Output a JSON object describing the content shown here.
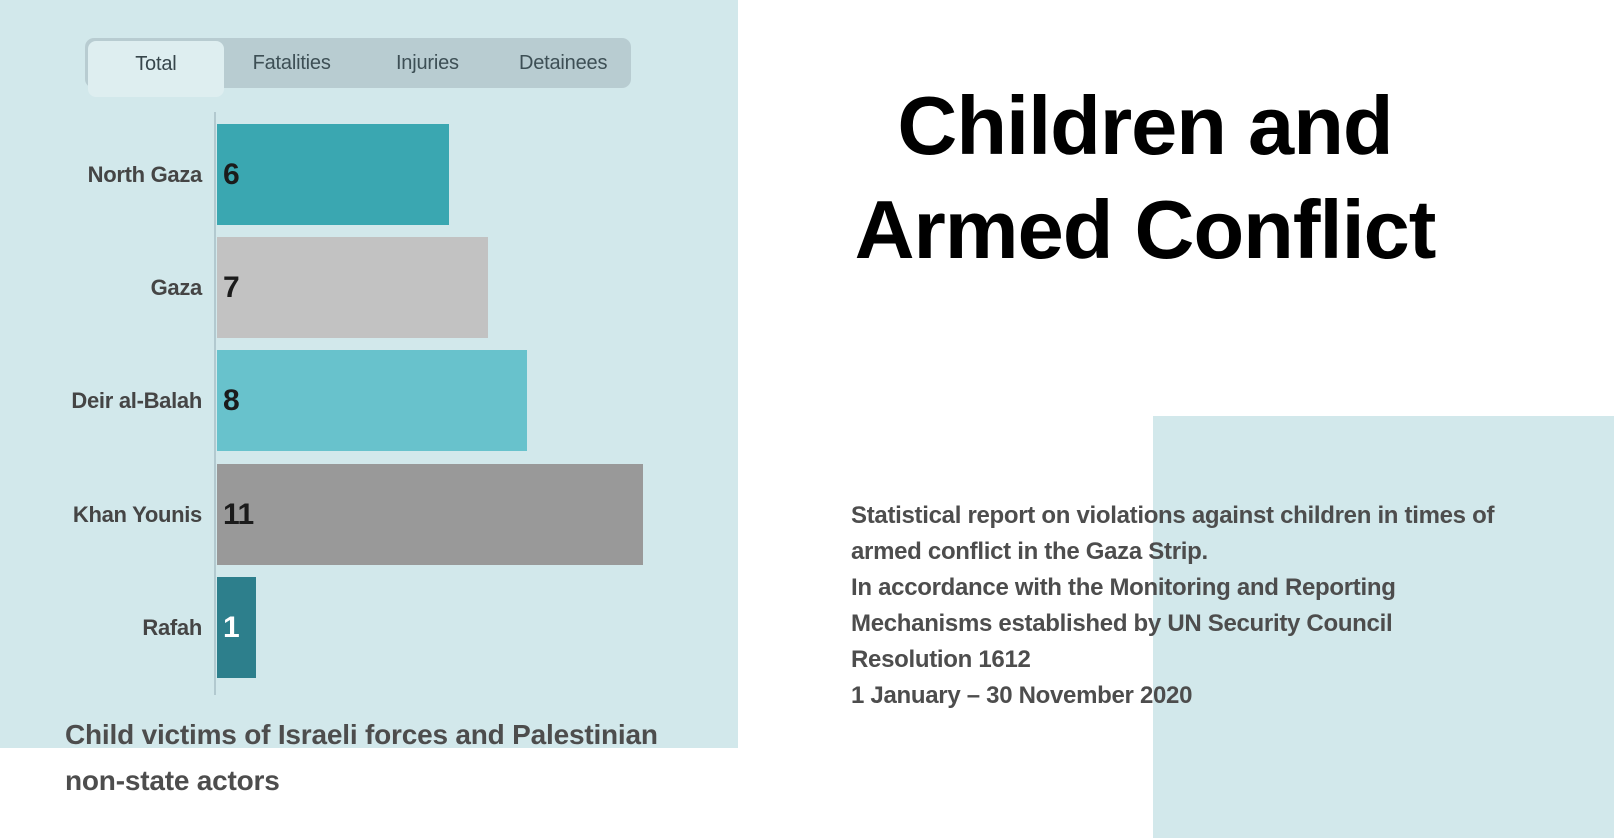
{
  "left_panel": {
    "tabs": [
      {
        "label": "Total",
        "active": true
      },
      {
        "label": "Fatalities",
        "active": false
      },
      {
        "label": "Injuries",
        "active": false
      },
      {
        "label": "Detainees",
        "active": false
      }
    ],
    "caption_lines": [
      "Child victims of Israeli forces and Palestinian",
      "non-state actors"
    ]
  },
  "chart_data": {
    "type": "bar",
    "orientation": "horizontal",
    "active_tab": "Total",
    "tab_options": [
      "Total",
      "Fatalities",
      "Injuries",
      "Detainees"
    ],
    "categories": [
      "North Gaza",
      "Gaza",
      "Deir al-Balah",
      "Khan Younis",
      "Rafah"
    ],
    "values": [
      6,
      7,
      8,
      11,
      1
    ],
    "bar_colors": [
      "#3aa7b1",
      "#c2c2c2",
      "#68c2cc",
      "#999999",
      "#2d7f8c"
    ],
    "value_label_colors": [
      "#1b1b1b",
      "#1b1b1b",
      "#1b1b1b",
      "#1b1b1b",
      "#ffffff"
    ],
    "title": "Child victims of Israeli forces and Palestinian non-state actors",
    "xlabel": "",
    "ylabel": "",
    "xlim": [
      0,
      12
    ],
    "gridlines": false,
    "legend": false,
    "value_labels_shown": true
  },
  "right_panel": {
    "title_lines": [
      "Children and",
      "Armed Conflict"
    ],
    "description_lines": [
      "Statistical report on violations against children in times of",
      "armed conflict in the Gaza Strip.",
      "In accordance with the Monitoring and Reporting",
      "Mechanisms established by UN Security Council",
      "Resolution 1612",
      "1 January – 30 November 2020"
    ]
  },
  "colors": {
    "panel_blue": "#d2e8eb",
    "tabbar_bg": "#b8ccd1",
    "active_tab_bg": "#deeef0",
    "axis_line": "#b2c9cf",
    "body_text": "#4d4d4d",
    "title_text": "#000000"
  }
}
